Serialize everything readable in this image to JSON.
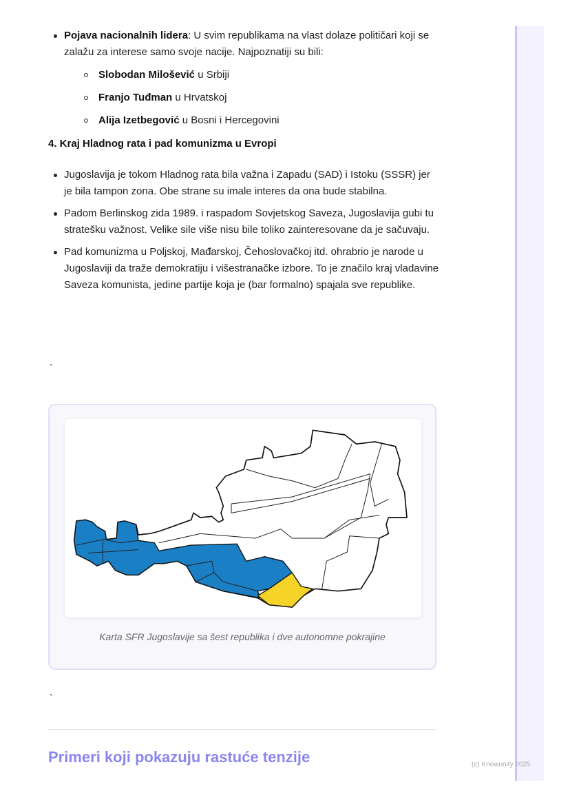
{
  "leaders": {
    "bold": "Pojava nacionalnih lidera",
    "text": ": U svim republikama na vlast dolaze političari koji se zalažu za interese samo svoje nacije. Najpoznatiji su bili:",
    "items": [
      {
        "name": "Slobodan Milošević",
        "rest": " u Srbiji"
      },
      {
        "name": "Franjo Tuđman",
        "rest": " u Hrvatskoj"
      },
      {
        "name": "Alija Izetbegović",
        "rest": " u Bosni i Hercegovini"
      }
    ]
  },
  "section4": {
    "heading": "4. Kraj Hladnog rata i pad komunizma u Evropi",
    "bullets": [
      "Jugoslavija je tokom Hladnog rata bila važna i Zapadu (SAD) i Istoku (SSSR) jer je bila tampon zona. Obe strane su imale interes da ona bude stabilna.",
      "Padom Berlinskog zida 1989. i raspadom Sovjetskog Saveza, Jugoslavija gubi tu stratešku važnost. Velike sile više nisu bile toliko zainteresovane da je sačuvaju.",
      "Pad komunizma u Poljskoj, Mađarskoj, Čehoslovačkoj itd. ohrabrio je narode u Jugoslaviji da traže demokratiju i višestranačke izbore. To je značilo kraj vladavine Saveza komunista, jedine partije koja je (bar formalno) spajala sve republike."
    ]
  },
  "backtick": "`",
  "figure": {
    "caption": "Karta SFR Jugoslavije sa šest republika i dve autonomne pokrajine",
    "colors": {
      "blue": "#1a7fc4",
      "yellow": "#f5d327"
    }
  },
  "next_heading": "Primeri koji pokazuju rastuće tenzije",
  "footer": "(c) Knowunity 2025"
}
